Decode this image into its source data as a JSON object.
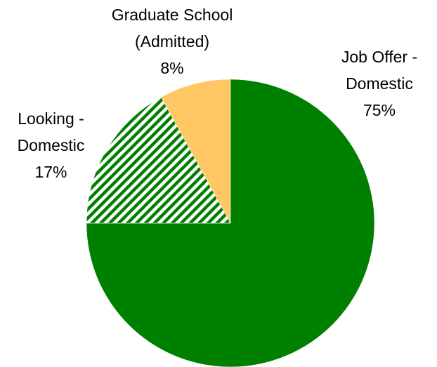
{
  "chart_data": {
    "type": "pie",
    "categories": [
      "Job Offer - Domestic",
      "Looking - Domestic",
      "Graduate School (Admitted)"
    ],
    "values": [
      75,
      17,
      8
    ],
    "value_labels": [
      "75%",
      "17%",
      "8%"
    ],
    "colors": [
      "#008000",
      "#008000",
      "#ffc864"
    ],
    "hatch": [
      false,
      true,
      false
    ]
  }
}
